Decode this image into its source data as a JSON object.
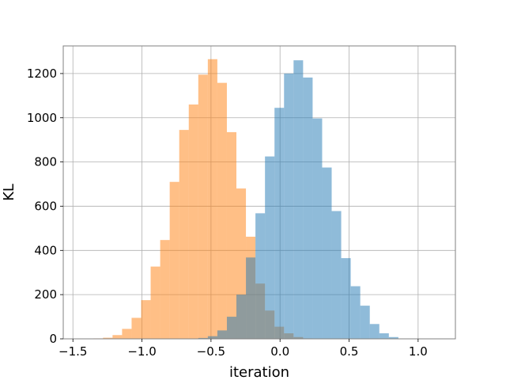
{
  "chart_data": {
    "type": "histogram",
    "title": "",
    "xlabel": "iteration",
    "ylabel": "KL",
    "xlim": [
      -1.57,
      1.27
    ],
    "ylim": [
      0,
      1325
    ],
    "xticks": [
      -1.5,
      -1.0,
      -0.5,
      0.0,
      0.5,
      1.0
    ],
    "xtick_labels": [
      "−1.5",
      "−1.0",
      "−0.5",
      "0.0",
      "0.5",
      "1.0"
    ],
    "yticks": [
      0,
      200,
      400,
      600,
      800,
      1000,
      1200
    ],
    "ytick_labels": [
      "0",
      "200",
      "400",
      "600",
      "800",
      "1000",
      "1200"
    ],
    "grid": true,
    "legend": null,
    "series": [
      {
        "color": "#ff7f0e",
        "alpha": 0.5,
        "bin_width": 0.069,
        "bin_start": -1.351,
        "counts": [
          2,
          5,
          17,
          45,
          95,
          175,
          327,
          447,
          710,
          945,
          1060,
          1195,
          1265,
          1158,
          935,
          680,
          462,
          250,
          128,
          55,
          25,
          8,
          2
        ]
      },
      {
        "color": "#1f77b4",
        "alpha": 0.5,
        "bin_width": 0.069,
        "bin_start": -0.592,
        "counts": [
          4,
          12,
          38,
          100,
          200,
          368,
          568,
          825,
          1045,
          1200,
          1260,
          1182,
          997,
          775,
          578,
          365,
          238,
          150,
          67,
          25,
          8,
          1
        ]
      }
    ]
  }
}
